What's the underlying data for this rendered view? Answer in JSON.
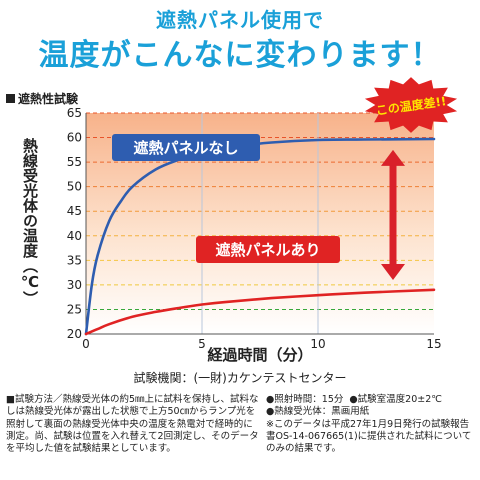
{
  "header": {
    "subtitle": "遮熱パネル使用で",
    "title": "温度がこんなに変わります！"
  },
  "section_title": "遮熱性試験",
  "badge": "この温度差!!",
  "chart_data": {
    "type": "line",
    "xlabel": "経過時間（分）",
    "ylabel": "熱線受光体の温度（℃）",
    "xlim": [
      0,
      15
    ],
    "ylim": [
      20,
      65
    ],
    "x_ticks": [
      0,
      5,
      10,
      15
    ],
    "y_ticks": [
      20,
      25,
      30,
      35,
      40,
      45,
      50,
      55,
      60,
      65
    ],
    "series": [
      {
        "name": "遮熱パネルなし",
        "color": "#2e5db0",
        "x": [
          0,
          0.25,
          0.5,
          1,
          1.5,
          2,
          3,
          4,
          5,
          6,
          7,
          8,
          10,
          12,
          15
        ],
        "y": [
          20,
          30,
          36,
          43,
          47,
          50,
          53.5,
          55.5,
          57,
          58,
          58.5,
          59,
          59.5,
          59.6,
          59.7
        ]
      },
      {
        "name": "遮熱パネルあり",
        "color": "#e02323",
        "x": [
          0,
          0.5,
          1,
          2,
          3,
          4,
          5,
          6,
          8,
          10,
          12,
          15
        ],
        "y": [
          20,
          21,
          22,
          23.5,
          24.5,
          25.3,
          26,
          26.5,
          27.3,
          27.9,
          28.4,
          29
        ]
      }
    ],
    "grid": true,
    "source": "試験機関：(一財)カケンテストセンター"
  },
  "notes_left": "■試験方法／熱線受光体の約5㎜上に試料を保持し、試料なしは熱線受光体が露出した状態で上方50㎝からランプ光を照射して裏面の熱線受光体中央の温度を熱電対で経時的に測定。尚、試験は位置を入れ替えて2回測定し、そのデータを平均した値を試験結果としています。",
  "notes_right": {
    "irradiation_time": "●照射時間：15分",
    "room_temp": "●試験室温度20±2℃",
    "receptor": "●熱線受光体：黒画用紙",
    "disclaimer": "※このデータは平成27年1月9日発行の試験報告書OS-14-067665(1)に提供された試料についてのみの結果です。"
  },
  "colors": {
    "accent": "#1aa0d8",
    "hot": "#e02323",
    "cool": "#2e5db0"
  }
}
